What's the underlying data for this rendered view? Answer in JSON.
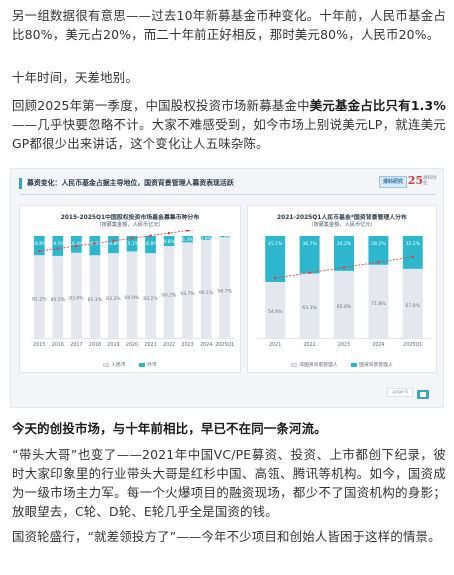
{
  "article": {
    "p1": "另一组数据很有意思——过去10年新募基金币种变化。十年前，人民币基金占比80%，美元占20%，而二十年前正好相反，那时美元80%，人民币20%。",
    "p2": "十年时间，天差地别。",
    "p3_a": "回顾2025年第一季度，中国股权投资市场新募基金中",
    "p3_b": "美元基金占比只有1.3%",
    "p3_c": "——几乎快要忽略不计。大家不难感受到，如今市场上别说美元LP，就连美元GP都很少出来讲话，这个变化让人五味杂陈。",
    "p4": "今天的创投市场，与十年前相比，早已不在同一条河流。",
    "p5": "“带头大哥”也变了——2021年中国VC/PE募资、投资、上市都创下纪录，彼时大家印象里的行业带头大哥是红杉中国、高瓴、腾讯等机构。如今，国资成为一级市场主力军。每一个火爆项目的融资现场，都少不了国资机构的身影；放眼望去，C轮、D轮、E轮几乎全是国资的钱。",
    "p6": "国资轮盛行，“就差领投方了”——今年不少项目和创始人皆困于这样的情景。"
  },
  "infographic": {
    "title": "募资变化：人民币基金占据主导地位，国资背景管理人募资表现活跃",
    "logo_text": "清科研究",
    "logo_num": "25",
    "logo_sub": "清科创业",
    "page_tag": "page 6",
    "colors": {
      "rmb": "#e4e7ee",
      "usd": "#2cb7ce",
      "trend": "#d24a4a",
      "accent": "#3aa3c6"
    }
  },
  "chart_data": [
    {
      "type": "bar",
      "stacked": true,
      "title": "2015-2025Q1中国股权投资市场基金募集币种分布",
      "subtitle": "（按募集金额，人民币亿元）",
      "categories": [
        "2015",
        "2016",
        "2017",
        "2018",
        "2019",
        "2020",
        "2021",
        "2022",
        "2023",
        "2024",
        "2025Q1"
      ],
      "series": [
        {
          "name": "人民币",
          "values": [
            81.2,
            80.5,
            83.6,
            81.1,
            83.2,
            84.9,
            83.2,
            90.2,
            93.7,
            96.1,
            98.7
          ]
        },
        {
          "name": "外币",
          "values": [
            18.8,
            19.5,
            16.4,
            18.9,
            16.8,
            15.1,
            16.8,
            9.8,
            6.3,
            3.9,
            1.3
          ]
        }
      ],
      "ylim": [
        0,
        100
      ],
      "trend_line": true,
      "legend": "bottom"
    },
    {
      "type": "bar",
      "stacked": true,
      "title": "2021-2025Q1人民币基金*国资背景管理人分布",
      "subtitle": "（按募集金额，人民币亿元）",
      "categories": [
        "2021",
        "2022",
        "2023",
        "2024",
        "2025Q1"
      ],
      "series": [
        {
          "name": "非国资背景管理人",
          "values": [
            54.9,
            63.3,
            65.8,
            71.8,
            67.8
          ]
        },
        {
          "name": "国资背景管理人",
          "values": [
            45.1,
            36.7,
            34.2,
            28.2,
            32.2
          ]
        }
      ],
      "ylim": [
        0,
        100
      ],
      "trend_line": true,
      "legend": "bottom"
    }
  ]
}
